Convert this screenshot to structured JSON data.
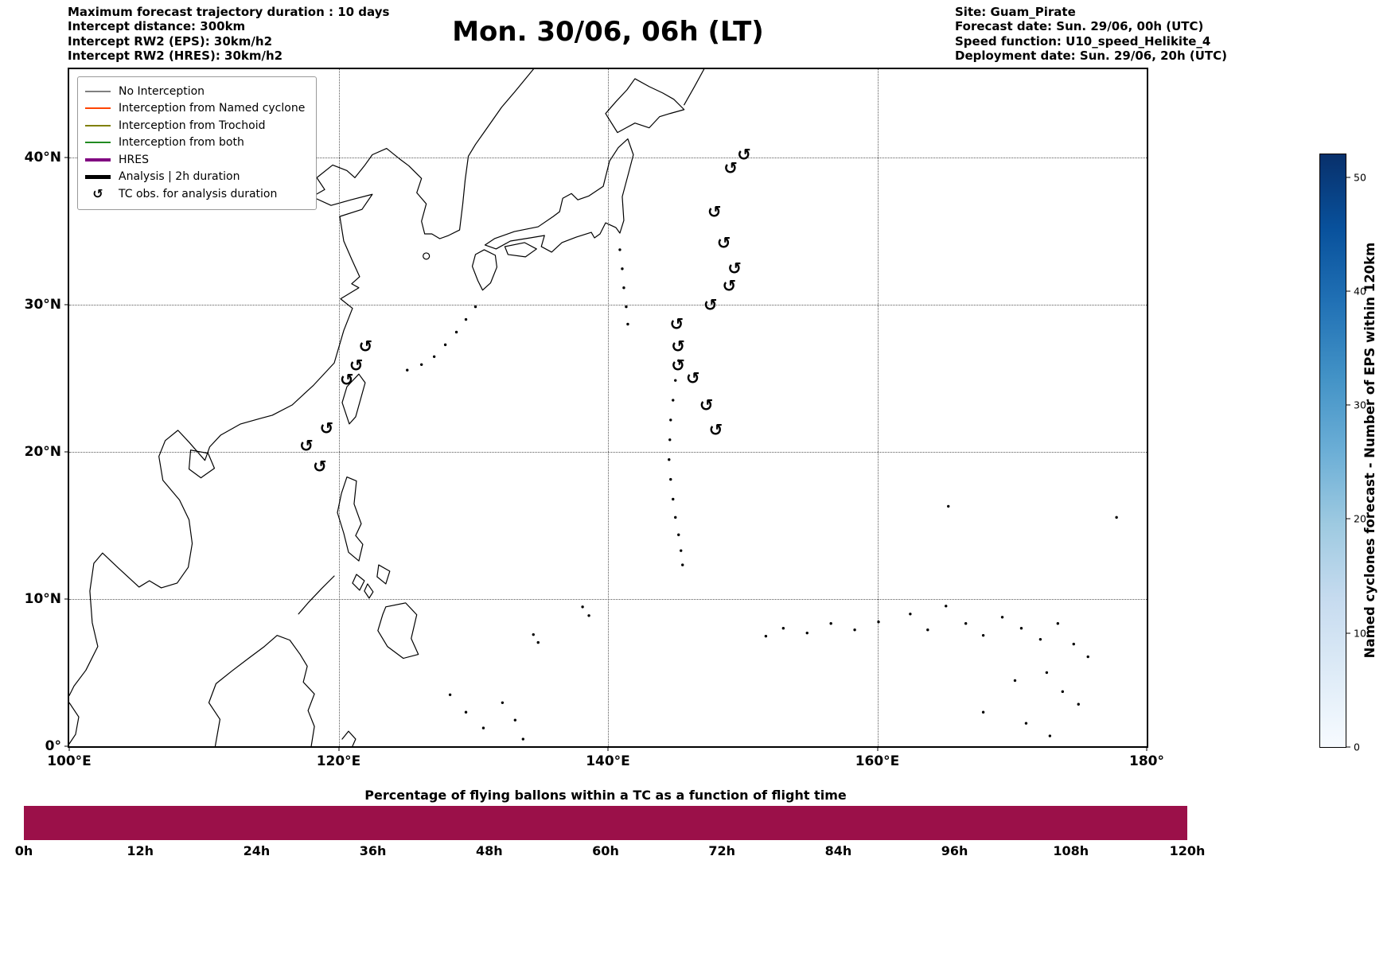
{
  "header": {
    "left_lines": [
      "Maximum forecast trajectory duration : 10 days",
      "Intercept distance: 300km",
      "Intercept RW2 (EPS):  30km/h2",
      "Intercept RW2 (HRES): 30km/h2"
    ],
    "title": "Mon. 30/06, 06h (LT)",
    "right_lines": [
      "Site: Guam_Pirate",
      "Forecast date: Sun. 29/06, 00h (UTC)",
      "Speed function: U10_speed_Helikite_4",
      "Deployment date: Sun. 29/06, 20h (UTC)"
    ]
  },
  "map": {
    "lon_range": [
      100,
      180
    ],
    "lat_range": [
      0,
      46
    ],
    "x_ticks": [
      {
        "label": "100°E",
        "lon": 100,
        "grid": false
      },
      {
        "label": "120°E",
        "lon": 120,
        "grid": true
      },
      {
        "label": "140°E",
        "lon": 140,
        "grid": true
      },
      {
        "label": "160°E",
        "lon": 160,
        "grid": true
      },
      {
        "label": "180°",
        "lon": 180,
        "grid": false
      }
    ],
    "y_ticks": [
      {
        "label": "0°",
        "lat": 0,
        "grid": false
      },
      {
        "label": "10°N",
        "lat": 10,
        "grid": true
      },
      {
        "label": "20°N",
        "lat": 20,
        "grid": true
      },
      {
        "label": "30°N",
        "lat": 30,
        "grid": true
      },
      {
        "label": "40°N",
        "lat": 40,
        "grid": true
      }
    ],
    "legend_items": [
      {
        "label": "No Interception",
        "style": "thin",
        "color": "#808080"
      },
      {
        "label": "Interception from Named cyclone",
        "style": "thin",
        "color": "#ff4500"
      },
      {
        "label": "Interception from Trochoid",
        "style": "thin",
        "color": "#808000"
      },
      {
        "label": "Interception from both",
        "style": "thin",
        "color": "#228b22"
      },
      {
        "label": "HRES",
        "style": "thick",
        "color": "#800080"
      },
      {
        "label": "Analysis | 2h duration",
        "style": "thick",
        "color": "#000000"
      },
      {
        "label": "TC obs. for analysis duration",
        "style": "marker",
        "color": "#000000"
      }
    ],
    "tc_symbol": "↺"
  },
  "colorbar": {
    "label": "Named cyclones forecast - Number of EPS within 120km",
    "range": [
      0,
      52
    ],
    "ticks": [
      0,
      10,
      20,
      30,
      40,
      50
    ],
    "gradient": [
      "#f7fbff",
      "#deebf7",
      "#c6dbef",
      "#9ecae1",
      "#6baed6",
      "#4292c6",
      "#2171b5",
      "#08519c",
      "#08306b"
    ]
  },
  "bottom_chart": {
    "title": "Percentage of flying ballons within a TC as a function of flight time",
    "tick_labels": [
      "0h",
      "12h",
      "24h",
      "36h",
      "48h",
      "60h",
      "72h",
      "84h",
      "96h",
      "108h",
      "120h"
    ],
    "bar_color": "#9b1049",
    "value_percent": 100
  },
  "chart_data": [
    {
      "type": "scatter",
      "title": "Mon. 30/06, 06h (LT)",
      "xlabel": "",
      "ylabel": "",
      "xlim": [
        100,
        180
      ],
      "ylim": [
        0,
        46
      ],
      "x_tick_labels": [
        "100°E",
        "120°E",
        "140°E",
        "160°E",
        "180°"
      ],
      "y_tick_labels": [
        "0°",
        "10°N",
        "20°N",
        "30°N",
        "40°N"
      ],
      "grid": true,
      "legend_position": "upper left",
      "legend_entries": [
        "No Interception",
        "Interception from Named cyclone",
        "Interception from Trochoid",
        "Interception from both",
        "HRES",
        "Analysis | 2h duration",
        "TC obs. for analysis duration"
      ],
      "series": [
        {
          "name": "TC obs. for analysis duration",
          "marker": "↺",
          "points": [
            [
              122.0,
              27.1
            ],
            [
              121.3,
              25.8
            ],
            [
              120.6,
              24.8
            ],
            [
              119.1,
              21.5
            ],
            [
              117.6,
              20.3
            ],
            [
              118.6,
              18.9
            ],
            [
              150.1,
              40.1
            ],
            [
              149.1,
              39.2
            ],
            [
              147.9,
              36.2
            ],
            [
              148.6,
              34.1
            ],
            [
              149.4,
              32.4
            ],
            [
              149.0,
              31.2
            ],
            [
              147.6,
              29.9
            ],
            [
              145.1,
              28.6
            ],
            [
              145.2,
              27.1
            ],
            [
              145.2,
              25.8
            ],
            [
              146.3,
              24.9
            ],
            [
              147.3,
              23.1
            ],
            [
              148.0,
              21.4
            ]
          ]
        }
      ],
      "colorbar": {
        "label": "Named cyclones forecast - Number of EPS within 120km",
        "range": [
          0,
          52
        ],
        "ticks": [
          0,
          10,
          20,
          30,
          40,
          50
        ],
        "colormap": "Blues"
      }
    },
    {
      "type": "bar",
      "title": "Percentage of flying ballons within a TC as a function of flight time",
      "x_tick_labels": [
        "0h",
        "12h",
        "24h",
        "36h",
        "48h",
        "60h",
        "72h",
        "84h",
        "96h",
        "108h",
        "120h"
      ],
      "x_range_hours": [
        0,
        120
      ],
      "values_percent": [
        100,
        100,
        100,
        100,
        100,
        100,
        100,
        100,
        100,
        100
      ],
      "bar_color": "#9b1049"
    }
  ]
}
